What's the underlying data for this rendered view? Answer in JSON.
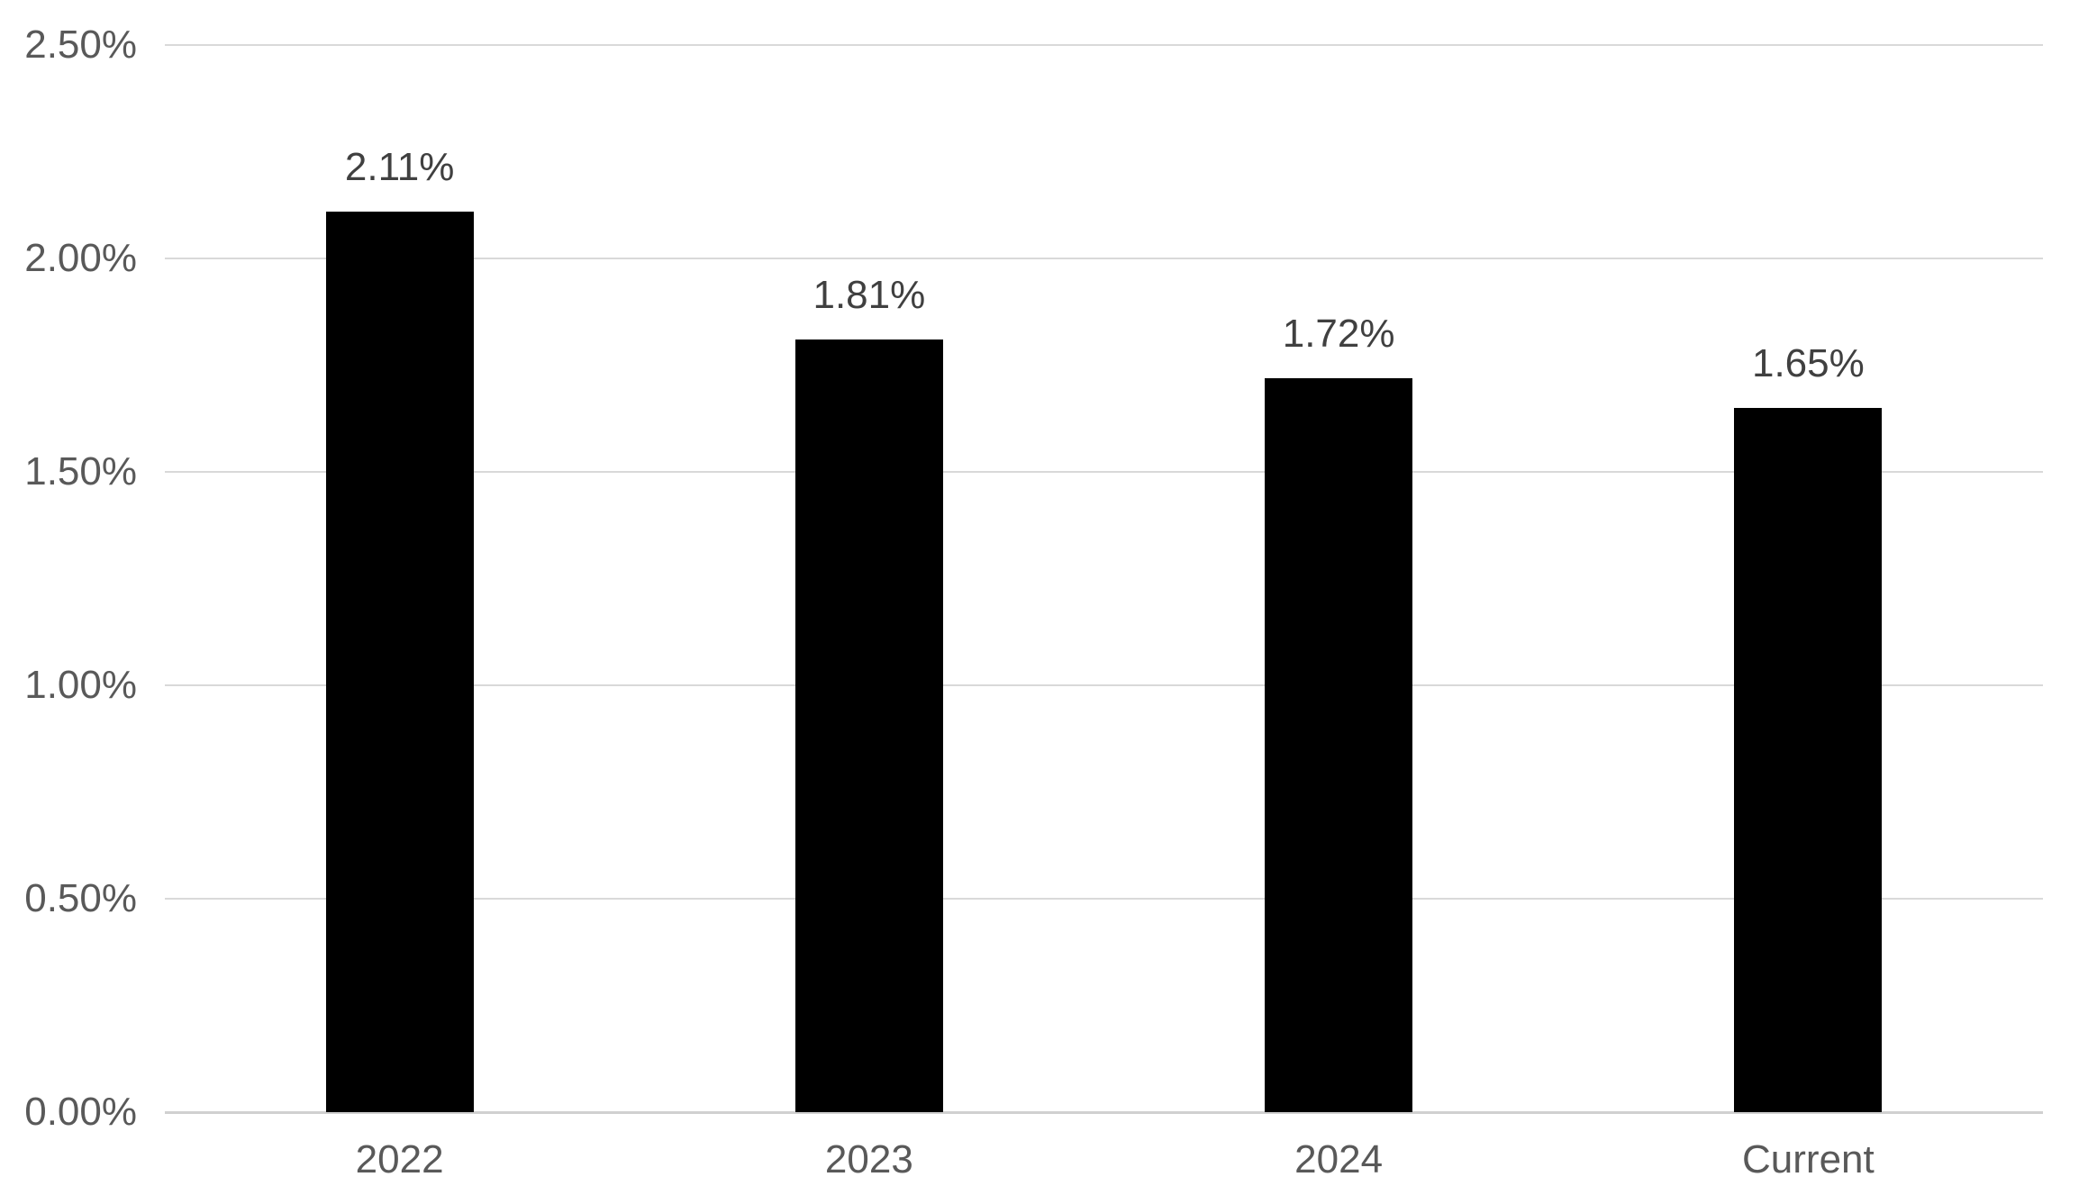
{
  "chart_data": {
    "type": "bar",
    "title": "",
    "xlabel": "",
    "ylabel": "",
    "categories": [
      "2022",
      "2023",
      "2024",
      "Current"
    ],
    "values": [
      0.0211,
      0.0181,
      0.0172,
      0.0165
    ],
    "value_labels": [
      "2.11%",
      "1.81%",
      "1.72%",
      "1.65%"
    ],
    "ylim": [
      0,
      0.025
    ],
    "yticks": [
      {
        "value": 0.0,
        "label": "0.00%"
      },
      {
        "value": 0.005,
        "label": "0.50%"
      },
      {
        "value": 0.01,
        "label": "1.00%"
      },
      {
        "value": 0.015,
        "label": "1.50%"
      },
      {
        "value": 0.02,
        "label": "2.00%"
      },
      {
        "value": 0.025,
        "label": "2.50%"
      }
    ],
    "grid": "horizontal",
    "legend": "none",
    "bar_color": "#000000",
    "colors": {
      "background": "#ffffff",
      "gridline": "#d9d9d9",
      "axis_line": "#d0d0d0",
      "axis_label": "#595959",
      "data_label": "#404040"
    }
  }
}
